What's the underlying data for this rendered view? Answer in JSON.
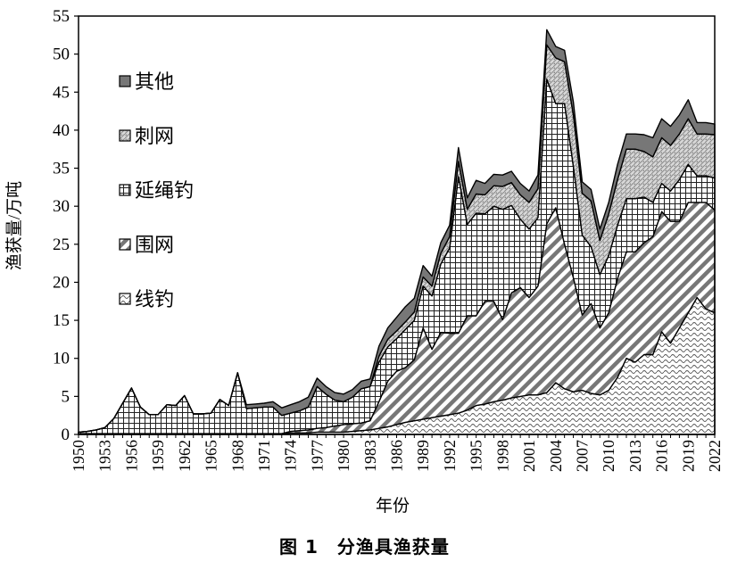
{
  "caption": "图 1　分渔具渔获量",
  "chart_data": {
    "type": "area",
    "stacked": true,
    "xlabel": "年份",
    "ylabel": "渔获量/万吨",
    "ylim": [
      0,
      55
    ],
    "yticks": [
      0,
      5,
      10,
      15,
      20,
      25,
      30,
      35,
      40,
      45,
      50,
      55
    ],
    "xticks": [
      "1950",
      "1953",
      "1956",
      "1959",
      "1962",
      "1965",
      "1968",
      "1971",
      "1974",
      "1977",
      "1980",
      "1983",
      "1986",
      "1989",
      "1992",
      "1995",
      "1998",
      "2001",
      "2004",
      "2007",
      "2010",
      "2013",
      "2016",
      "2019",
      "2022"
    ],
    "legend_position": "left-inside",
    "grid": false,
    "x": [
      1950,
      1951,
      1952,
      1953,
      1954,
      1955,
      1956,
      1957,
      1958,
      1959,
      1960,
      1961,
      1962,
      1963,
      1964,
      1965,
      1966,
      1967,
      1968,
      1969,
      1970,
      1971,
      1972,
      1973,
      1974,
      1975,
      1976,
      1977,
      1978,
      1979,
      1980,
      1981,
      1982,
      1983,
      1984,
      1985,
      1986,
      1987,
      1988,
      1989,
      1990,
      1991,
      1992,
      1993,
      1994,
      1995,
      1996,
      1997,
      1998,
      1999,
      2000,
      2001,
      2002,
      2003,
      2004,
      2005,
      2006,
      2007,
      2008,
      2009,
      2010,
      2011,
      2012,
      2013,
      2014,
      2015,
      2016,
      2017,
      2018,
      2019,
      2020,
      2021,
      2022
    ],
    "series": [
      {
        "name": "线钓",
        "pattern": "wave",
        "values": [
          0.1,
          0.1,
          0.1,
          0.1,
          0.1,
          0.1,
          0.1,
          0.1,
          0.1,
          0.1,
          0.1,
          0.1,
          0.1,
          0.1,
          0.1,
          0.1,
          0.1,
          0.1,
          0.1,
          0.1,
          0.1,
          0.1,
          0.1,
          0.1,
          0.2,
          0.2,
          0.2,
          0.3,
          0.3,
          0.3,
          0.3,
          0.4,
          0.5,
          0.6,
          0.8,
          1.0,
          1.3,
          1.6,
          1.8,
          2.0,
          2.2,
          2.4,
          2.6,
          2.8,
          3.2,
          3.8,
          4.0,
          4.3,
          4.5,
          4.8,
          5.0,
          5.2,
          5.2,
          5.5,
          6.8,
          6.0,
          5.6,
          5.8,
          5.4,
          5.2,
          5.8,
          7.5,
          10.0,
          9.5,
          10.5,
          10.5,
          13.5,
          12.0,
          14.0,
          16.0,
          18.0,
          16.5,
          16.0
        ]
      },
      {
        "name": "围网",
        "pattern": "diagonal",
        "values": [
          0,
          0,
          0,
          0,
          0,
          0,
          0,
          0,
          0,
          0,
          0,
          0,
          0,
          0,
          0,
          0,
          0,
          0,
          0,
          0,
          0,
          0,
          0,
          0,
          0.2,
          0.3,
          0.4,
          0.5,
          0.6,
          0.8,
          1.0,
          1.0,
          1.0,
          1.2,
          3.5,
          6.0,
          7.0,
          7.2,
          8.0,
          12.0,
          9.0,
          11.0,
          10.7,
          10.5,
          12.4,
          11.8,
          13.5,
          13.2,
          10.6,
          13.8,
          14.3,
          12.8,
          14.3,
          22.2,
          23.0,
          19.0,
          15.0,
          9.9,
          11.8,
          8.8,
          10.2,
          13.0,
          14.0,
          14.5,
          14.7,
          15.5,
          15.8,
          16.0,
          14.0,
          14.5,
          12.5,
          14.0,
          13.5
        ]
      },
      {
        "name": "延绳钓",
        "pattern": "grid",
        "values": [
          0.2,
          0.3,
          0.5,
          0.8,
          2.0,
          4.0,
          6.0,
          3.5,
          2.5,
          2.5,
          3.8,
          3.7,
          5.0,
          2.6,
          2.6,
          2.7,
          4.5,
          3.7,
          8.0,
          3.3,
          3.4,
          3.5,
          3.5,
          2.4,
          2.4,
          2.6,
          3.0,
          5.5,
          4.4,
          3.4,
          3.0,
          3.5,
          4.5,
          4.5,
          5.2,
          4.5,
          4.3,
          5.0,
          5.2,
          5.5,
          7.0,
          9.0,
          11.2,
          20.6,
          12.0,
          13.5,
          11.5,
          12.5,
          14.5,
          11.5,
          9.0,
          9.0,
          9.0,
          19.0,
          13.7,
          18.5,
          14.6,
          10.5,
          7.5,
          7.0,
          7.5,
          7.0,
          7.0,
          7.0,
          6.0,
          4.5,
          3.7,
          4.0,
          5.5,
          5.0,
          3.5,
          3.5,
          4.2
        ]
      },
      {
        "name": "刺网",
        "pattern": "dots",
        "values": [
          0,
          0,
          0,
          0,
          0,
          0,
          0,
          0,
          0,
          0,
          0,
          0,
          0,
          0,
          0,
          0,
          0,
          0,
          0,
          0,
          0,
          0,
          0,
          0,
          0,
          0,
          0,
          0,
          0,
          0,
          0,
          0,
          0,
          0,
          0.8,
          1.0,
          1.0,
          1.0,
          1.1,
          1.2,
          1.3,
          1.4,
          1.5,
          2.0,
          2.0,
          2.5,
          2.5,
          2.7,
          3.0,
          3.0,
          3.2,
          3.5,
          3.8,
          4.5,
          6.0,
          5.5,
          6.8,
          5.5,
          6.0,
          4.5,
          5.5,
          6.0,
          6.5,
          6.5,
          6.0,
          6.0,
          6.0,
          6.0,
          6.0,
          6.0,
          5.5,
          5.5,
          5.7
        ]
      },
      {
        "name": "其他",
        "pattern": "solid",
        "values": [
          0,
          0,
          0,
          0,
          0,
          0,
          0,
          0,
          0,
          0,
          0,
          0,
          0,
          0,
          0,
          0,
          0,
          0,
          0,
          0.5,
          0.5,
          0.5,
          0.7,
          1.0,
          1.1,
          1.2,
          1.3,
          1.1,
          1.0,
          1.0,
          1.0,
          1.0,
          1.0,
          1.0,
          1.3,
          1.5,
          1.8,
          2.0,
          1.8,
          1.5,
          1.3,
          1.4,
          1.5,
          1.8,
          1.5,
          1.8,
          1.5,
          1.5,
          1.5,
          1.5,
          1.5,
          1.5,
          1.8,
          2.0,
          1.5,
          1.5,
          1.7,
          1.5,
          1.5,
          1.5,
          1.5,
          2.0,
          2.0,
          2.0,
          2.2,
          2.5,
          2.5,
          2.5,
          2.5,
          2.5,
          1.5,
          1.5,
          1.4
        ]
      }
    ]
  }
}
